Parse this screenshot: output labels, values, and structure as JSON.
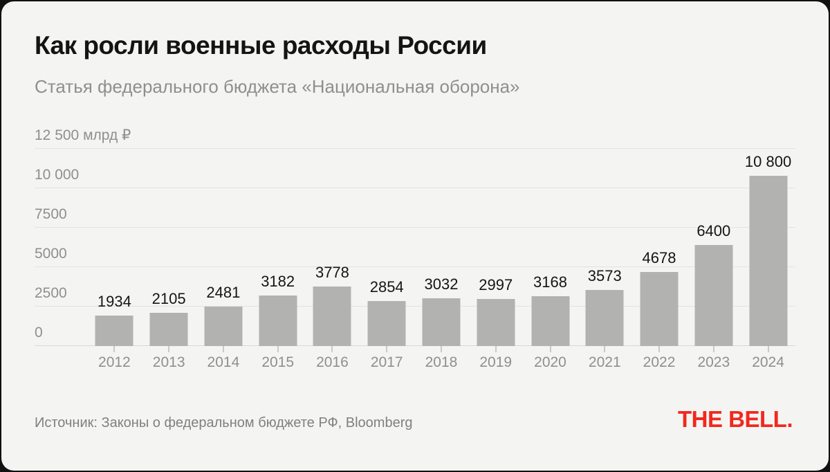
{
  "header": {
    "title": "Как росли военные расходы России",
    "subtitle": "Статья федерального бюджета «Национальная оборона»"
  },
  "chart_data": {
    "type": "bar",
    "title": "Как росли военные расходы России",
    "subtitle": "Статья федерального бюджета «Национальная оборона»",
    "categories": [
      "2012",
      "2013",
      "2014",
      "2015",
      "2016",
      "2017",
      "2018",
      "2019",
      "2020",
      "2021",
      "2022",
      "2023",
      "2024"
    ],
    "values": [
      1934,
      2105,
      2481,
      3182,
      3778,
      2854,
      3032,
      2997,
      3168,
      3573,
      4678,
      6400,
      10800
    ],
    "value_labels": [
      "1934",
      "2105",
      "2481",
      "3182",
      "3778",
      "2854",
      "3032",
      "2997",
      "3168",
      "3573",
      "4678",
      "6400",
      "10 800"
    ],
    "xlabel": "",
    "ylabel": "млрд ₽",
    "ylim": [
      0,
      12500
    ],
    "yticks": [
      {
        "value": 0,
        "label": "0"
      },
      {
        "value": 2500,
        "label": "2500"
      },
      {
        "value": 5000,
        "label": "5000"
      },
      {
        "value": 7500,
        "label": "7500"
      },
      {
        "value": 10000,
        "label": "10 000"
      },
      {
        "value": 12500,
        "label": "12 500 млрд ₽"
      }
    ],
    "grid": true,
    "legend": false,
    "bar_color": "#b2b2b1"
  },
  "footer": {
    "source": "Источник: Законы о федеральном бюджете РФ, Bloomberg",
    "logo": "THE BELL.",
    "logo_color": "#f1281c"
  },
  "colors": {
    "card_background": "#f4f4f3",
    "page_background": "#111111",
    "bar": "#b2b2b1",
    "gridline": "#e2e2e1",
    "title_text": "#141414",
    "muted_text": "#8f8f8f",
    "accent_red": "#f1281c"
  }
}
